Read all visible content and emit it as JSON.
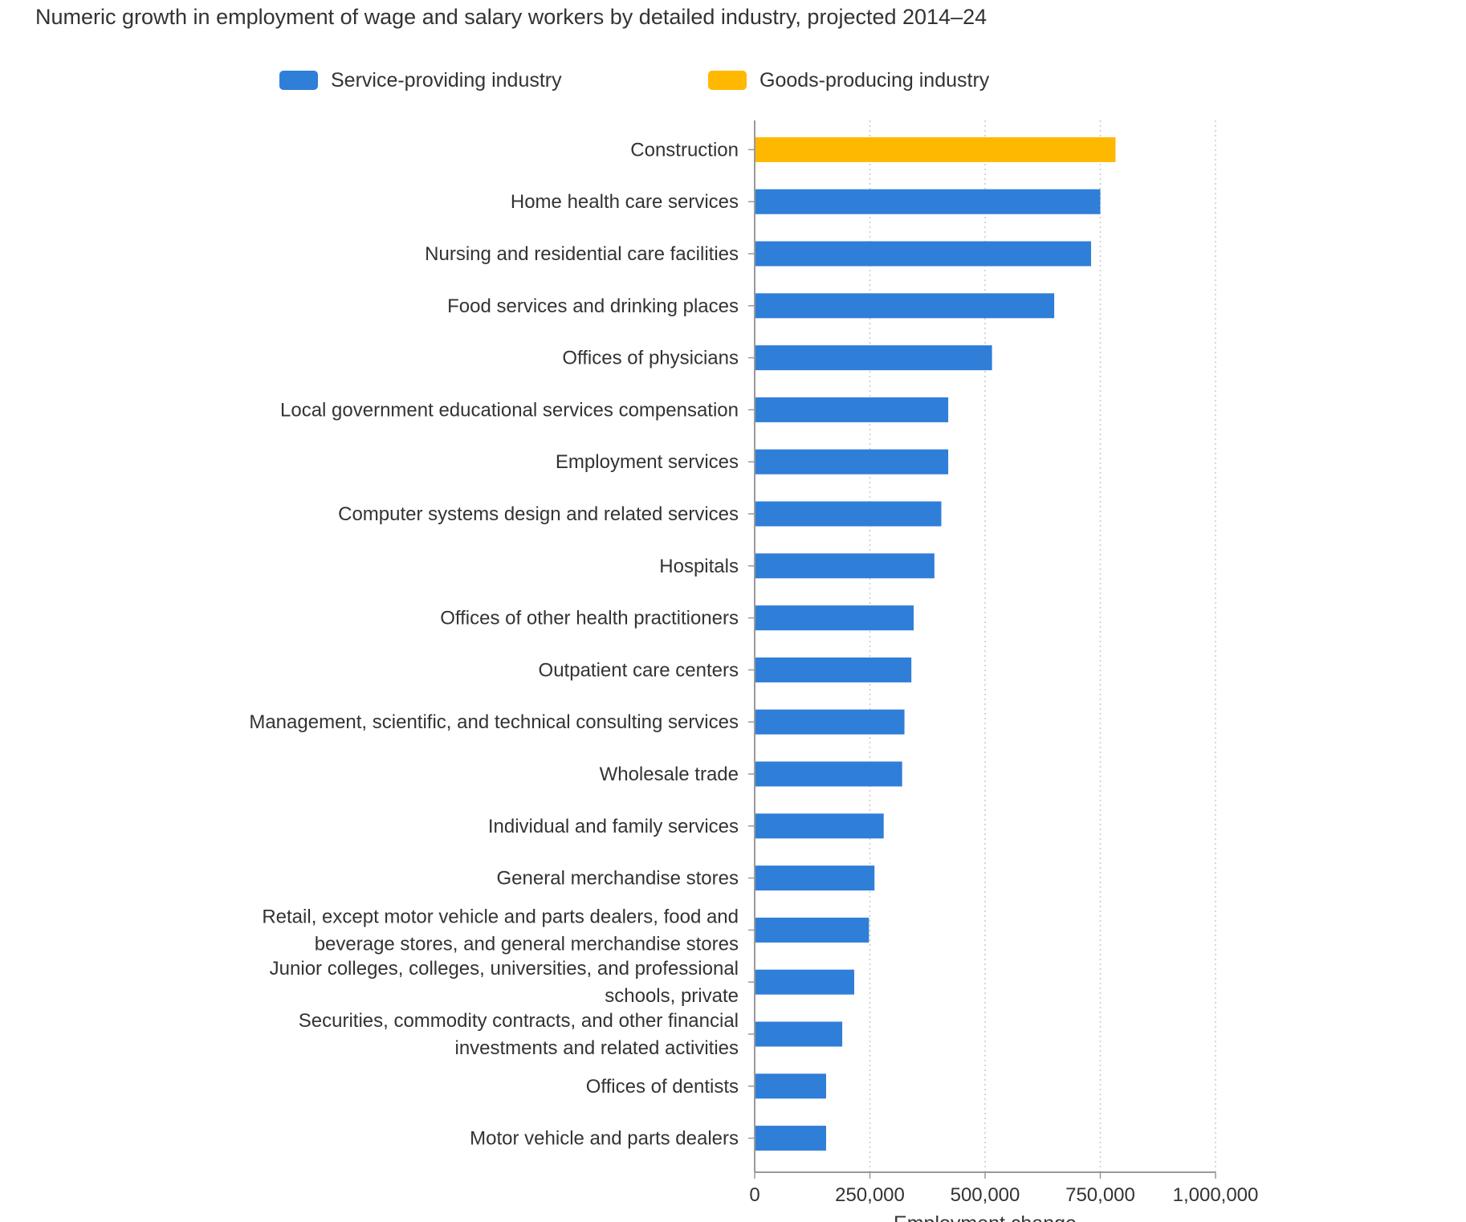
{
  "chart_data": {
    "type": "bar",
    "orientation": "horizontal",
    "title": "Numeric growth in employment of wage and salary workers by detailed industry, projected 2014–24",
    "xlabel": "Employment change",
    "ylabel": "",
    "xlim": [
      0,
      1000000
    ],
    "x_ticks": [
      0,
      250000,
      500000,
      750000,
      1000000
    ],
    "x_tick_labels": [
      "0",
      "250,000",
      "500,000",
      "750,000",
      "1,000,000"
    ],
    "grid": "vertical dotted",
    "legend_placement": "top",
    "colors": {
      "service": "#2f7ed8",
      "goods": "#ffb800"
    },
    "legend": [
      {
        "name": "Service-providing industry",
        "color": "#2f7ed8"
      },
      {
        "name": "Goods-producing industry",
        "color": "#ffb800"
      }
    ],
    "categories": [
      [
        "Construction"
      ],
      [
        "Home health care services"
      ],
      [
        "Nursing and residential care facilities"
      ],
      [
        "Food services and drinking places"
      ],
      [
        "Offices of physicians"
      ],
      [
        "Local government educational services compensation"
      ],
      [
        "Employment services"
      ],
      [
        "Computer systems design and related services"
      ],
      [
        "Hospitals"
      ],
      [
        "Offices of other health practitioners"
      ],
      [
        "Outpatient care centers"
      ],
      [
        "Management, scientific, and technical consulting services"
      ],
      [
        "Wholesale trade"
      ],
      [
        "Individual and family services"
      ],
      [
        "General merchandise stores"
      ],
      [
        "Retail, except motor vehicle and parts dealers, food and",
        "beverage stores, and general merchandise stores"
      ],
      [
        "Junior colleges, colleges, universities, and professional",
        "schools, private"
      ],
      [
        "Securities, commodity contracts, and other financial",
        "investments and related activities"
      ],
      [
        "Offices of dentists"
      ],
      [
        "Motor vehicle and parts dealers"
      ]
    ],
    "values": [
      783000,
      750000,
      730000,
      650000,
      515000,
      420000,
      420000,
      405000,
      390000,
      345000,
      340000,
      325000,
      320000,
      280000,
      260000,
      248000,
      216000,
      190000,
      155000,
      155000
    ],
    "industry_type": [
      "goods",
      "service",
      "service",
      "service",
      "service",
      "service",
      "service",
      "service",
      "service",
      "service",
      "service",
      "service",
      "service",
      "service",
      "service",
      "service",
      "service",
      "service",
      "service",
      "service"
    ]
  }
}
